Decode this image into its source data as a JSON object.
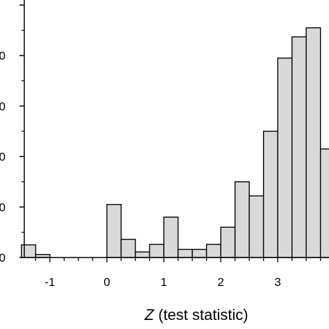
{
  "chart_data": {
    "type": "bar",
    "title": "",
    "xlabel_prefix": "Z",
    "xlabel_rest": " (test statistic)",
    "ylabel": "",
    "xlim": [
      -1.45,
      3.9
    ],
    "ylim": [
      0,
      5.1
    ],
    "x_ticks": [
      -1,
      0,
      1,
      2,
      3
    ],
    "y_ticks": [
      0,
      1,
      2,
      3,
      4,
      5
    ],
    "y_tick_labels_visible": [
      "0",
      "0",
      "0",
      "0",
      "0"
    ],
    "bin_width": 0.25,
    "bins": [
      {
        "x0": -1.5,
        "value": 0.25
      },
      {
        "x0": -1.25,
        "value": 0.06
      },
      {
        "x0": -1.0,
        "value": 0.0
      },
      {
        "x0": -0.75,
        "value": 0.0
      },
      {
        "x0": -0.5,
        "value": 0.0
      },
      {
        "x0": -0.25,
        "value": 0.0
      },
      {
        "x0": 0.0,
        "value": 1.05
      },
      {
        "x0": 0.25,
        "value": 0.36
      },
      {
        "x0": 0.5,
        "value": 0.11
      },
      {
        "x0": 0.75,
        "value": 0.26
      },
      {
        "x0": 1.0,
        "value": 0.8
      },
      {
        "x0": 1.25,
        "value": 0.16
      },
      {
        "x0": 1.5,
        "value": 0.16
      },
      {
        "x0": 1.75,
        "value": 0.26
      },
      {
        "x0": 2.0,
        "value": 0.6
      },
      {
        "x0": 2.25,
        "value": 1.5
      },
      {
        "x0": 2.5,
        "value": 1.22
      },
      {
        "x0": 2.75,
        "value": 2.5
      },
      {
        "x0": 3.0,
        "value": 3.95
      },
      {
        "x0": 3.25,
        "value": 4.37
      },
      {
        "x0": 3.5,
        "value": 4.55
      },
      {
        "x0": 3.75,
        "value": 2.15
      }
    ],
    "bar_fill": "#d9d9d9",
    "bar_stroke": "#000000",
    "grid": false,
    "legend": "none"
  }
}
